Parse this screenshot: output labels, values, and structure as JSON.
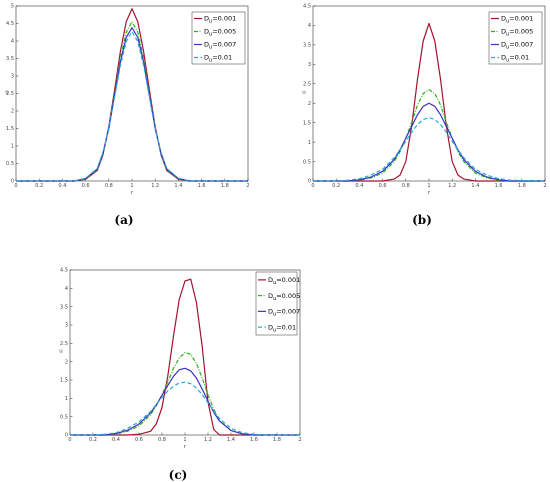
{
  "colors": {
    "red": "#a2142f",
    "green": "#2db21b",
    "blue": "#3b33c4",
    "cyan": "#2aa9d9"
  },
  "chart_data": [
    {
      "type": "line",
      "caption": "(a)",
      "xlabel": "r",
      "ylabel": "u",
      "xlim": [
        0,
        2
      ],
      "ylim": [
        0,
        5
      ],
      "x_ticks": [
        "0",
        "0.2",
        "0.4",
        "0.6",
        "0.8",
        "1",
        "1.2",
        "1.4",
        "1.6",
        "1.8",
        "2"
      ],
      "y_ticks": [
        "0",
        "0.5",
        "1",
        "1.5",
        "2",
        "2.5",
        "3",
        "3.5",
        "4",
        "4.5",
        "5"
      ],
      "grid": false,
      "legend_position": "top-right",
      "x": [
        0.0,
        0.5,
        0.6,
        0.7,
        0.75,
        0.8,
        0.85,
        0.9,
        0.95,
        1.0,
        1.05,
        1.1,
        1.15,
        1.2,
        1.25,
        1.3,
        1.4,
        1.5,
        2.0
      ],
      "series": [
        {
          "name": "D_u=0.001",
          "color": "red",
          "dash": "solid",
          "values": [
            0.0,
            0.0,
            0.05,
            0.3,
            0.75,
            1.55,
            2.6,
            3.7,
            4.55,
            4.92,
            4.55,
            3.7,
            2.6,
            1.55,
            0.75,
            0.3,
            0.05,
            0.0,
            0.0
          ]
        },
        {
          "name": "D_u=0.005",
          "color": "green",
          "dash": "dashdot",
          "values": [
            0.0,
            0.0,
            0.06,
            0.32,
            0.78,
            1.52,
            2.5,
            3.5,
            4.25,
            4.55,
            4.25,
            3.5,
            2.5,
            1.52,
            0.78,
            0.32,
            0.06,
            0.0,
            0.0
          ]
        },
        {
          "name": "D_u=0.007",
          "color": "blue",
          "dash": "solid",
          "values": [
            0.0,
            0.0,
            0.07,
            0.34,
            0.8,
            1.5,
            2.45,
            3.4,
            4.1,
            4.38,
            4.1,
            3.4,
            2.45,
            1.5,
            0.8,
            0.34,
            0.07,
            0.0,
            0.0
          ]
        },
        {
          "name": "D_u=0.01",
          "color": "cyan",
          "dash": "dashed",
          "values": [
            0.0,
            0.0,
            0.08,
            0.36,
            0.82,
            1.48,
            2.4,
            3.3,
            3.98,
            4.27,
            3.98,
            3.3,
            2.4,
            1.48,
            0.82,
            0.36,
            0.08,
            0.0,
            0.0
          ]
        }
      ]
    },
    {
      "type": "line",
      "caption": "(b)",
      "xlabel": "r",
      "ylabel": "u",
      "xlim": [
        0,
        2
      ],
      "ylim": [
        0,
        4.5
      ],
      "x_ticks": [
        "0",
        "0.2",
        "0.4",
        "0.6",
        "0.8",
        "1",
        "1.2",
        "1.4",
        "1.6",
        "1.8",
        "2"
      ],
      "y_ticks": [
        "0",
        "0.5",
        "1",
        "1.5",
        "2",
        "2.5",
        "3",
        "3.5",
        "4",
        "4.5"
      ],
      "grid": false,
      "legend_position": "top-right",
      "x": [
        0.0,
        0.2,
        0.3,
        0.4,
        0.5,
        0.6,
        0.7,
        0.75,
        0.8,
        0.85,
        0.9,
        0.95,
        1.0,
        1.05,
        1.1,
        1.15,
        1.2,
        1.25,
        1.3,
        1.4,
        1.5,
        1.6,
        1.7,
        2.0
      ],
      "series": [
        {
          "name": "D_u=0.001",
          "color": "red",
          "dash": "solid",
          "values": [
            0.0,
            0.0,
            0.0,
            0.0,
            0.0,
            0.0,
            0.05,
            0.15,
            0.5,
            1.4,
            2.6,
            3.6,
            4.05,
            3.6,
            2.6,
            1.4,
            0.5,
            0.15,
            0.05,
            0.0,
            0.0,
            0.0,
            0.0,
            0.0
          ]
        },
        {
          "name": "D_u=0.005",
          "color": "green",
          "dash": "dashdot",
          "values": [
            0.0,
            0.0,
            0.0,
            0.02,
            0.08,
            0.2,
            0.5,
            0.75,
            1.1,
            1.5,
            1.95,
            2.25,
            2.35,
            2.25,
            1.95,
            1.5,
            1.1,
            0.75,
            0.5,
            0.2,
            0.08,
            0.02,
            0.0,
            0.0
          ]
        },
        {
          "name": "D_u=0.007",
          "color": "blue",
          "dash": "solid",
          "values": [
            0.0,
            0.0,
            0.0,
            0.03,
            0.1,
            0.25,
            0.55,
            0.8,
            1.1,
            1.4,
            1.7,
            1.92,
            2.0,
            1.92,
            1.7,
            1.4,
            1.1,
            0.8,
            0.55,
            0.25,
            0.1,
            0.03,
            0.0,
            0.0
          ]
        },
        {
          "name": "D_u=0.01",
          "color": "cyan",
          "dash": "dashed",
          "values": [
            0.0,
            0.0,
            0.02,
            0.06,
            0.15,
            0.3,
            0.6,
            0.8,
            1.02,
            1.25,
            1.45,
            1.58,
            1.63,
            1.58,
            1.45,
            1.25,
            1.02,
            0.8,
            0.6,
            0.3,
            0.15,
            0.06,
            0.02,
            0.0
          ]
        }
      ]
    },
    {
      "type": "line",
      "caption": "(c)",
      "xlabel": "r",
      "ylabel": "u",
      "xlim": [
        0,
        2
      ],
      "ylim": [
        0,
        4.5
      ],
      "x_ticks": [
        "0",
        "0.2",
        "0.4",
        "0.6",
        "0.8",
        "1",
        "1.2",
        "1.4",
        "1.6",
        "1.8",
        "2"
      ],
      "y_ticks": [
        "0",
        "0.5",
        "1",
        "1.5",
        "2",
        "2.5",
        "3",
        "3.5",
        "4",
        "4.5"
      ],
      "grid": false,
      "legend_position": "top-right",
      "x": [
        0.0,
        0.2,
        0.3,
        0.4,
        0.5,
        0.6,
        0.7,
        0.75,
        0.8,
        0.85,
        0.9,
        0.95,
        1.0,
        1.05,
        1.1,
        1.15,
        1.2,
        1.25,
        1.3,
        1.4,
        1.5,
        1.6,
        1.7,
        2.0
      ],
      "series": [
        {
          "name": "D_u=0.001",
          "color": "red",
          "dash": "solid",
          "values": [
            0.0,
            0.0,
            0.0,
            0.0,
            0.0,
            0.02,
            0.1,
            0.3,
            0.75,
            1.6,
            2.7,
            3.7,
            4.2,
            4.25,
            3.6,
            2.4,
            0.9,
            0.15,
            0.0,
            0.0,
            0.0,
            0.0,
            0.0,
            0.0
          ]
        },
        {
          "name": "D_u=0.005",
          "color": "green",
          "dash": "dashdot",
          "values": [
            0.0,
            0.0,
            0.0,
            0.03,
            0.1,
            0.25,
            0.55,
            0.8,
            1.1,
            1.45,
            1.82,
            2.1,
            2.25,
            2.2,
            1.95,
            1.55,
            1.1,
            0.7,
            0.4,
            0.12,
            0.03,
            0.0,
            0.0,
            0.0
          ]
        },
        {
          "name": "D_u=0.007",
          "color": "blue",
          "dash": "solid",
          "values": [
            0.0,
            0.0,
            0.0,
            0.04,
            0.13,
            0.3,
            0.6,
            0.82,
            1.08,
            1.35,
            1.6,
            1.78,
            1.82,
            1.75,
            1.55,
            1.25,
            0.92,
            0.62,
            0.38,
            0.12,
            0.03,
            0.0,
            0.0,
            0.0
          ]
        },
        {
          "name": "D_u=0.01",
          "color": "cyan",
          "dash": "dashed",
          "values": [
            0.0,
            0.0,
            0.02,
            0.06,
            0.18,
            0.36,
            0.64,
            0.83,
            1.02,
            1.2,
            1.33,
            1.42,
            1.44,
            1.4,
            1.28,
            1.1,
            0.88,
            0.65,
            0.45,
            0.18,
            0.06,
            0.02,
            0.0,
            0.0
          ]
        }
      ]
    }
  ]
}
